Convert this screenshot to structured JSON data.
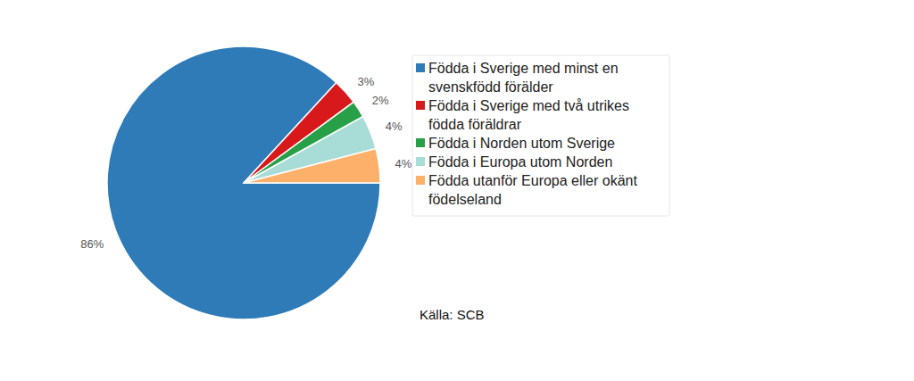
{
  "chart_data": {
    "type": "pie",
    "categories": [
      "Födda i Sverige med minst en svenskfödd förälder",
      "Födda i Sverige med två utrikes födda föräldrar",
      "Födda i Norden utom Sverige",
      "Födda i Europa utom Norden",
      "Födda utanför Europa eller okänt födelseland"
    ],
    "values": [
      86,
      3,
      2,
      4,
      4
    ],
    "value_labels": [
      "86%",
      "3%",
      "2%",
      "4%",
      "4%"
    ],
    "colors": [
      "#2e7bb8",
      "#d7191c",
      "#28a047",
      "#a8dcd6",
      "#fdb06a"
    ],
    "data_labels": true,
    "legend": "right",
    "source": "Källa: SCB"
  }
}
